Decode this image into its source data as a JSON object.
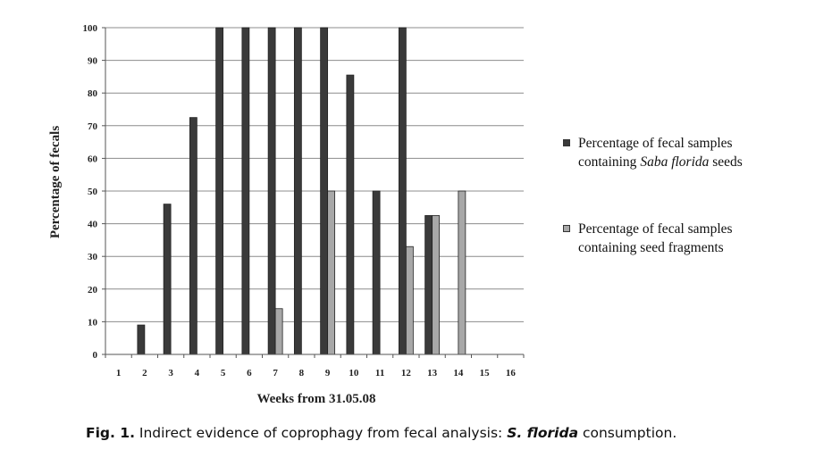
{
  "chart_data": {
    "type": "bar",
    "xlabel": "Weeks from 31.05.08",
    "ylabel": "Percentage of fecals",
    "ylim": [
      0,
      100
    ],
    "yticks": [
      0,
      10,
      20,
      30,
      40,
      50,
      60,
      70,
      80,
      90,
      100
    ],
    "grid": true,
    "legend_position": "right",
    "categories": [
      "1",
      "2",
      "3",
      "4",
      "5",
      "6",
      "7",
      "8",
      "9",
      "10",
      "11",
      "12",
      "13",
      "14",
      "15",
      "16"
    ],
    "series": [
      {
        "name": "Percentage of fecal samples containing Saba florida seeds",
        "legend_parts": [
          {
            "text": "Percentage of fecal samples containing ",
            "italic": false
          },
          {
            "text": "Saba florida",
            "italic": true
          },
          {
            "text": " seeds",
            "italic": false
          }
        ],
        "color": "#3a3a3a",
        "values": [
          null,
          9,
          46,
          72.5,
          100,
          100,
          100,
          100,
          100,
          85.5,
          50,
          100,
          42.5,
          null,
          null,
          null
        ]
      },
      {
        "name": "Percentage of fecal samples containing seed fragments",
        "legend_parts": [
          {
            "text": "Percentage of fecal samples containing seed fragments",
            "italic": false
          }
        ],
        "color": "#a8a8a8",
        "values": [
          null,
          null,
          null,
          null,
          null,
          null,
          14,
          null,
          50,
          null,
          null,
          33,
          42.5,
          50,
          null,
          null
        ]
      }
    ]
  },
  "caption": {
    "label": "Fig. 1.",
    "text_before": " Indirect evidence of coprophagy from fecal analysis: ",
    "species": "S. florida",
    "text_after": " consumption."
  }
}
